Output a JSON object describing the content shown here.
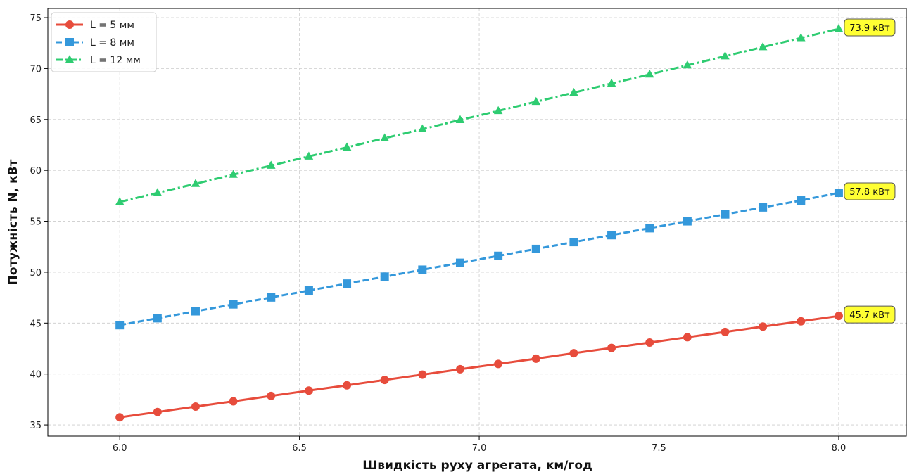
{
  "chart_data": {
    "type": "line",
    "xlabel": "Швидкість руху агрегата, км/год",
    "ylabel": "Потужність N, кВт",
    "xlim": [
      5.8,
      8.19
    ],
    "ylim": [
      33.9,
      75.9
    ],
    "xticks": [
      6.0,
      6.5,
      7.0,
      7.5,
      8.0
    ],
    "yticks": [
      35,
      40,
      45,
      50,
      55,
      60,
      65,
      70,
      75
    ],
    "xtick_labels": [
      "6.0",
      "6.5",
      "7.0",
      "7.5",
      "8.0"
    ],
    "ytick_labels": [
      "35",
      "40",
      "45",
      "50",
      "55",
      "60",
      "65",
      "70",
      "75"
    ],
    "grid": true,
    "legend_position": "top-left",
    "x": [
      6.0,
      6.105,
      6.211,
      6.316,
      6.421,
      6.526,
      6.632,
      6.737,
      6.842,
      6.947,
      7.053,
      7.158,
      7.263,
      7.368,
      7.474,
      7.579,
      7.684,
      7.789,
      7.895,
      8.0
    ],
    "series": [
      {
        "name": "L = 5 мм",
        "color": "#e74c3c",
        "marker": "circle",
        "linestyle": "solid",
        "values": [
          35.75,
          36.27,
          36.8,
          37.32,
          37.85,
          38.37,
          38.89,
          39.42,
          39.94,
          40.47,
          40.99,
          41.51,
          42.04,
          42.56,
          43.09,
          43.61,
          44.13,
          44.66,
          45.18,
          45.7
        ]
      },
      {
        "name": "L = 8 мм",
        "color": "#3498db",
        "marker": "square",
        "linestyle": "dashed",
        "values": [
          44.8,
          45.48,
          46.16,
          46.84,
          47.52,
          48.2,
          48.88,
          49.56,
          50.24,
          50.92,
          51.6,
          52.28,
          52.96,
          53.64,
          54.32,
          55.0,
          55.68,
          56.36,
          57.04,
          57.8
        ]
      },
      {
        "name": "L = 12 мм",
        "color": "#2ecc71",
        "marker": "triangle",
        "linestyle": "dashdot",
        "values": [
          56.9,
          57.79,
          58.68,
          59.58,
          60.47,
          61.37,
          62.26,
          63.16,
          64.05,
          64.95,
          65.84,
          66.74,
          67.63,
          68.53,
          69.42,
          70.32,
          71.21,
          72.11,
          73.0,
          73.9
        ]
      }
    ],
    "annotations": [
      {
        "text": "45.7 кВт",
        "x": 8.0,
        "y": 45.7
      },
      {
        "text": "57.8 кВт",
        "x": 8.0,
        "y": 57.8
      },
      {
        "text": "73.9 кВт",
        "x": 8.0,
        "y": 73.9
      }
    ],
    "annotation_bg": "#ffff33"
  }
}
